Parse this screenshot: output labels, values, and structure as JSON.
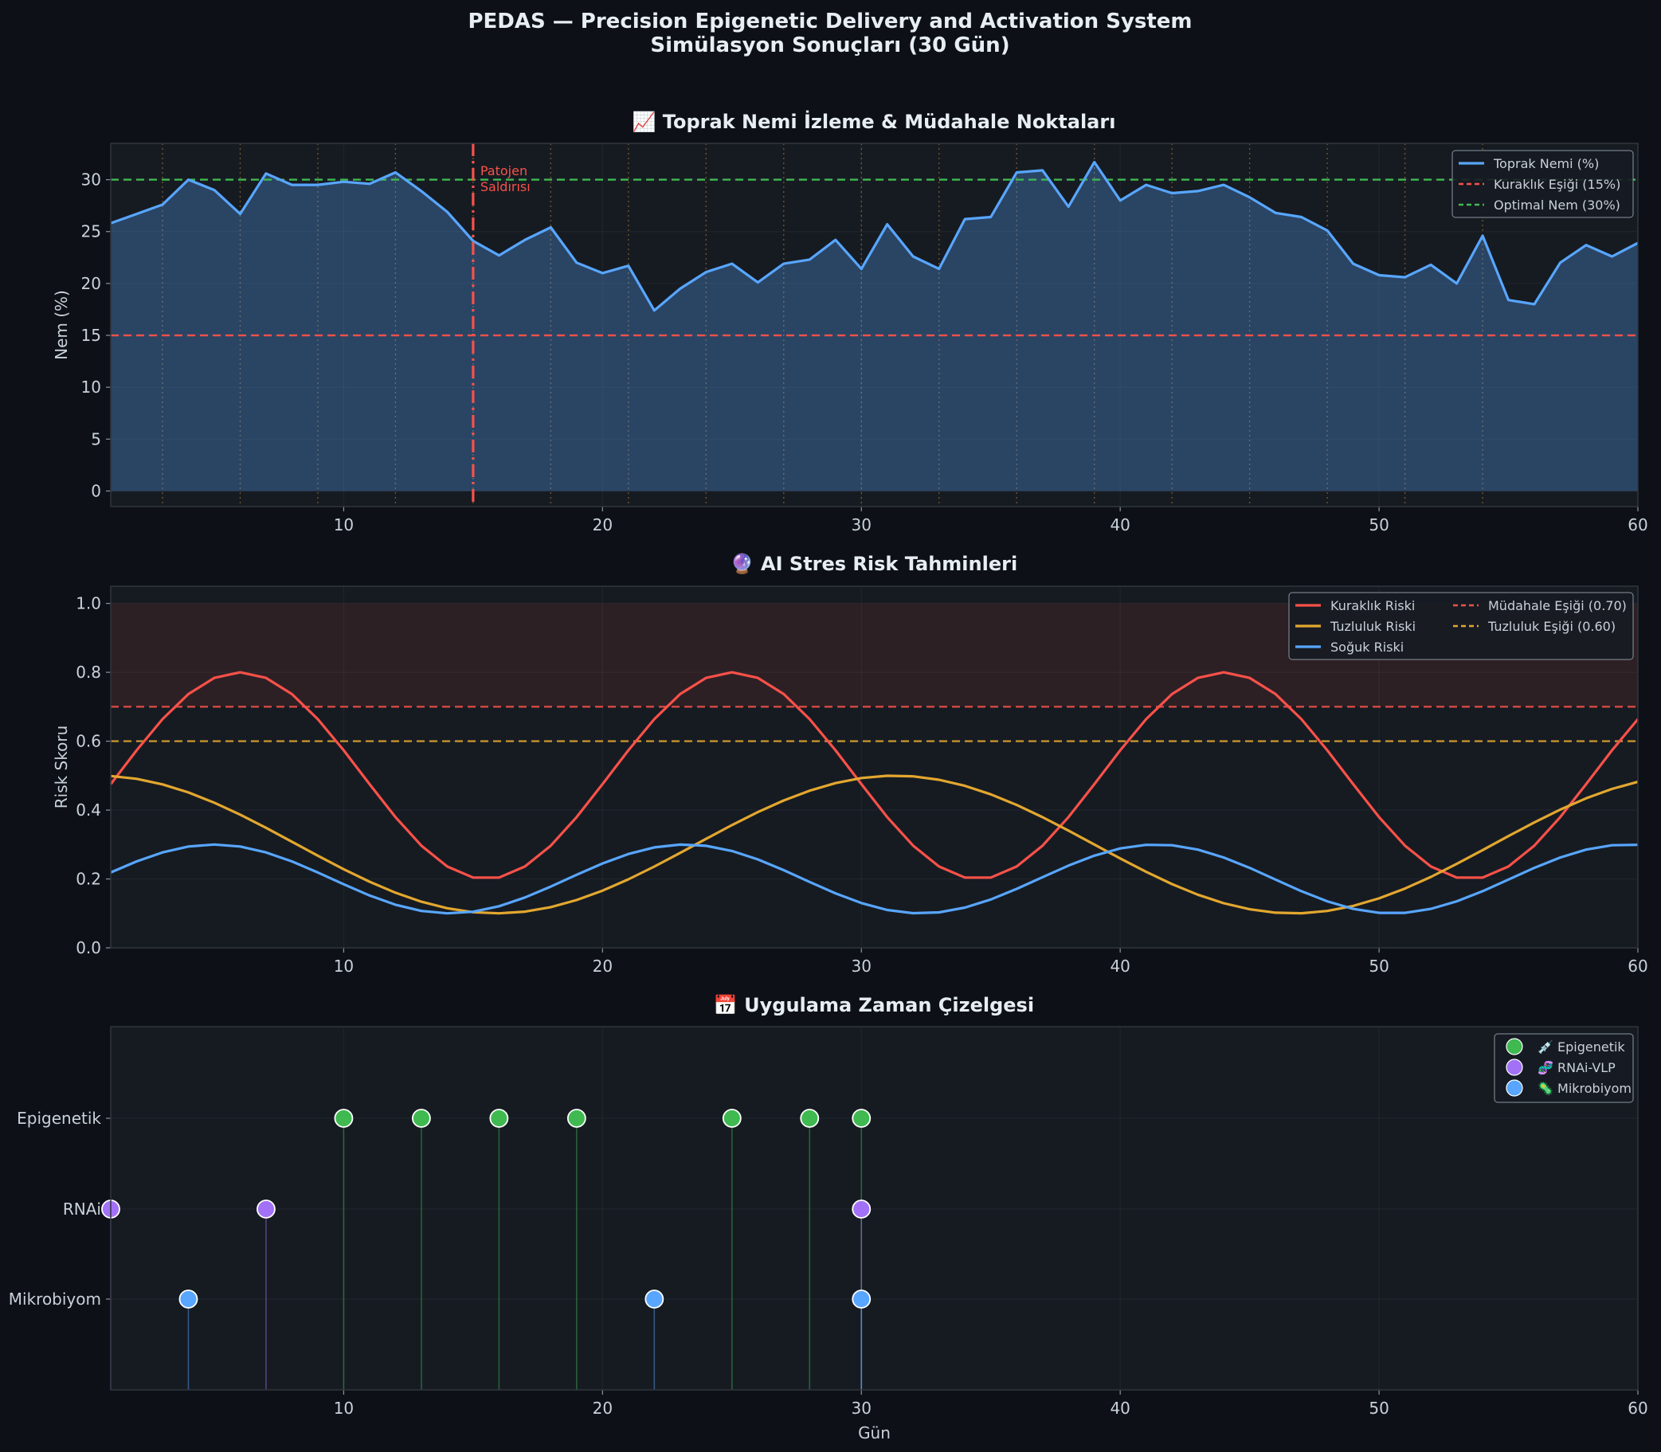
{
  "figure": {
    "title_line1": "PEDAS — Precision Epigenetic Delivery and Activation System",
    "title_line2": "Simülasyon Sonuçları (30 Gün)",
    "background": "#0d1117",
    "panel_bg": "#161b22"
  },
  "chart_data": [
    {
      "type": "area",
      "title": "📈 Toprak Nemi İzleme & Müdahale Noktaları",
      "xlabel": "",
      "ylabel": "Nem (%)",
      "xlim": [
        1,
        60
      ],
      "ylim": [
        -1.5,
        33.5
      ],
      "xticks": [
        10,
        20,
        30,
        40,
        50,
        60
      ],
      "yticks": [
        0,
        5,
        10,
        15,
        20,
        25,
        30
      ],
      "x_start": 1,
      "series": [
        {
          "name": "Toprak Nemi (%)",
          "color": "#58a6ff",
          "values": [
            25.8,
            26.7,
            27.6,
            30.0,
            29.0,
            26.7,
            30.6,
            29.5,
            29.5,
            29.8,
            29.6,
            30.7,
            28.9,
            26.9,
            24.1,
            22.7,
            24.2,
            25.4,
            22.0,
            21.0,
            21.7,
            17.4,
            19.5,
            21.1,
            21.9,
            20.1,
            21.9,
            22.3,
            24.2,
            21.4,
            25.7,
            22.6,
            21.4,
            26.2,
            26.4,
            30.7,
            30.9,
            27.4,
            31.7,
            28.0,
            29.5,
            28.7,
            28.9,
            29.5,
            28.3,
            26.8,
            26.4,
            25.1,
            21.9,
            20.8,
            20.6,
            21.8,
            20.0,
            24.6,
            18.4,
            18.0,
            22.0,
            23.7,
            22.6,
            23.9
          ]
        }
      ],
      "hlines": [
        {
          "name": "Kuraklık Eşiği (15%)",
          "y": 15,
          "color": "#f85149"
        },
        {
          "name": "Optimal Nem (30%)",
          "y": 30,
          "color": "#3fb950"
        }
      ],
      "event_line": {
        "x": 15,
        "color": "#f85149",
        "label_line1": "Patojen",
        "label_line2": "Saldırısı"
      },
      "intervention_days": [
        3,
        6,
        9,
        12,
        15,
        18,
        21,
        24,
        27,
        30,
        33,
        36,
        39,
        42,
        45,
        48,
        51,
        54
      ],
      "legend": [
        "Toprak Nemi (%)",
        "Kuraklık Eşiği (15%)",
        "Optimal Nem (30%)"
      ]
    },
    {
      "type": "line",
      "title": "🔮 AI Stres Risk Tahminleri",
      "xlabel": "",
      "ylabel": "Risk Skoru",
      "xlim": [
        1,
        60
      ],
      "ylim": [
        0,
        1.05
      ],
      "xticks": [
        10,
        20,
        30,
        40,
        50,
        60
      ],
      "yticks": [
        "0.0",
        "0.2",
        "0.4",
        "0.6",
        "0.8",
        "1.0"
      ],
      "danger_band": [
        0.7,
        1.0
      ],
      "series": [
        {
          "name": "Kuraklık Riski",
          "color": "#f85149",
          "formula": "0.5 + 0.3*sin(2*pi*(x-1.25)/19)"
        },
        {
          "name": "Tuzluluk Riski",
          "color": "#e3a72f",
          "formula": "0.3 + 0.2*cos(2*pi*(x-0.5)/30.8)"
        },
        {
          "name": "Soğuk Riski",
          "color": "#58a6ff",
          "formula": "0.2 + 0.1*sin(2*pi*(x-0.45)/18.2)"
        }
      ],
      "hlines": [
        {
          "name": "Müdahale Eşiği (0.70)",
          "y": 0.7,
          "color": "#f85149"
        },
        {
          "name": "Tuzluluk Eşiği (0.60)",
          "y": 0.6,
          "color": "#e3a72f"
        }
      ],
      "legend": [
        "Kuraklık Riski",
        "Tuzluluk Riski",
        "Soğuk Riski",
        "Müdahale Eşiği (0.70)",
        "Tuzluluk Eşiği (0.60)"
      ]
    },
    {
      "type": "scatter",
      "title": "📅 Uygulama Zaman Çizelgesi",
      "xlabel": "Gün",
      "ylabel": "",
      "xlim": [
        1,
        60
      ],
      "xticks": [
        10,
        20,
        30,
        40,
        50,
        60
      ],
      "categories": [
        "Epigenetik",
        "RNAi",
        "Mikrobiyom"
      ],
      "series": [
        {
          "name": "💉 Epigenetik",
          "category": "Epigenetik",
          "color": "#3fb950",
          "x": [
            10,
            13,
            16,
            19,
            25,
            28,
            30
          ]
        },
        {
          "name": "🧬 RNAi-VLP",
          "category": "RNAi",
          "color": "#a371f7",
          "x": [
            1,
            7,
            30
          ]
        },
        {
          "name": "🦠 Mikrobiyom",
          "category": "Mikrobiyom",
          "color": "#58a6ff",
          "x": [
            4,
            22,
            30
          ]
        }
      ]
    }
  ]
}
